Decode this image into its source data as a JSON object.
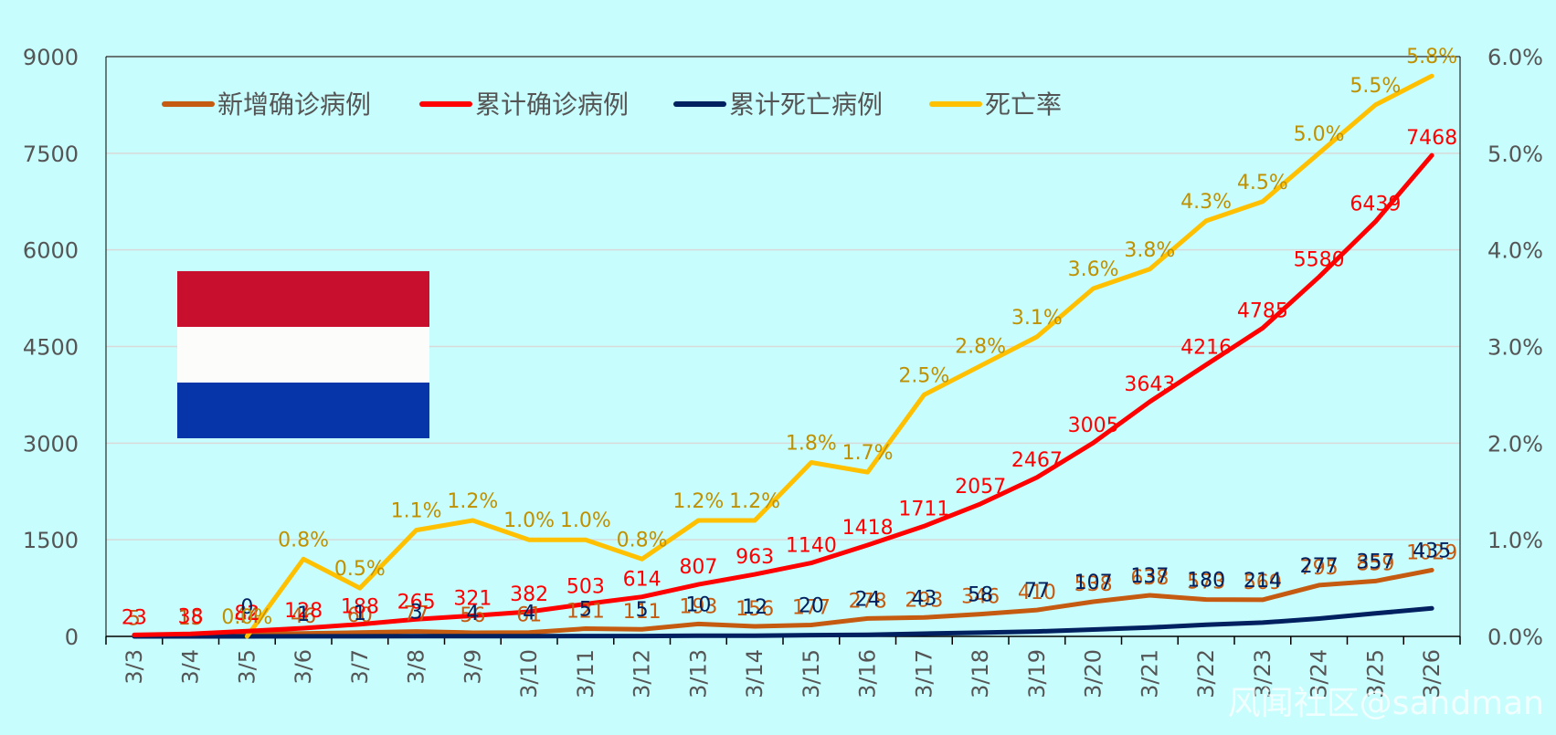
{
  "chart_data": {
    "type": "line",
    "categories": [
      "3/3",
      "3/4",
      "3/5",
      "3/6",
      "3/7",
      "3/8",
      "3/9",
      "3/10",
      "3/11",
      "3/12",
      "3/13",
      "3/14",
      "3/15",
      "3/16",
      "3/17",
      "3/18",
      "3/19",
      "3/20",
      "3/21",
      "3/22",
      "3/23",
      "3/24",
      "3/25",
      "3/26"
    ],
    "left_axis": {
      "ylim": [
        0,
        9000
      ],
      "ticks": [
        "0",
        "1500",
        "3000",
        "4500",
        "6000",
        "7500",
        "9000"
      ]
    },
    "right_axis": {
      "ylim": [
        0,
        6.0
      ],
      "ticks": [
        "0.0%",
        "1.0%",
        "2.0%",
        "3.0%",
        "4.0%",
        "5.0%",
        "6.0%"
      ]
    },
    "series": [
      {
        "name": "新增确诊病例",
        "axis": "left",
        "color": "#c55a11",
        "values": [
          5,
          15,
          44,
          46,
          60,
          77,
          56,
          61,
          121,
          111,
          193,
          156,
          177,
          278,
          293,
          346,
          410,
          538,
          638,
          573,
          569,
          795,
          859,
          1029
        ],
        "labels": [
          "5",
          "15",
          "44",
          "46",
          "60",
          "77",
          "56",
          "61",
          "121",
          "111",
          "193",
          "156",
          "177",
          "278",
          "293",
          "346",
          "410",
          "538",
          "638",
          "573",
          "569",
          "795",
          "859",
          "1029"
        ]
      },
      {
        "name": "累计确诊病例",
        "axis": "left",
        "color": "#ff0000",
        "values": [
          23,
          38,
          82,
          128,
          188,
          265,
          321,
          382,
          503,
          614,
          807,
          963,
          1140,
          1418,
          1711,
          2057,
          2467,
          3005,
          3643,
          4216,
          4785,
          5580,
          6439,
          7468
        ],
        "labels": [
          "23",
          "38",
          "82",
          "128",
          "188",
          "265",
          "321",
          "382",
          "503",
          "614",
          "807",
          "963",
          "1140",
          "1418",
          "1711",
          "2057",
          "2467",
          "3005",
          "3643",
          "4216",
          "4785",
          "5580",
          "6439",
          "7468"
        ]
      },
      {
        "name": "累计死亡病例",
        "axis": "left",
        "color": "#002060",
        "values": [
          0,
          0,
          0,
          1,
          1,
          3,
          4,
          4,
          5,
          5,
          10,
          12,
          20,
          24,
          43,
          58,
          77,
          107,
          137,
          180,
          214,
          277,
          357,
          435
        ],
        "labels": [
          "",
          "",
          "0",
          "1",
          "1",
          "3",
          "4",
          "4",
          "5",
          "5",
          "10",
          "12",
          "20",
          "24",
          "43",
          "58",
          "77",
          "107",
          "137",
          "180",
          "214",
          "277",
          "357",
          "435"
        ]
      },
      {
        "name": "死亡率",
        "axis": "right",
        "color": "#ffc000",
        "values": [
          null,
          null,
          0.0,
          0.8,
          0.5,
          1.1,
          1.2,
          1.0,
          1.0,
          0.8,
          1.2,
          1.2,
          1.8,
          1.7,
          2.5,
          2.8,
          3.1,
          3.6,
          3.8,
          4.3,
          4.5,
          5.0,
          5.5,
          5.8
        ],
        "labels": [
          "",
          "",
          "0.0%",
          "0.8%",
          "0.5%",
          "1.1%",
          "1.2%",
          "1.0%",
          "1.0%",
          "0.8%",
          "1.2%",
          "1.2%",
          "1.8%",
          "1.7%",
          "2.5%",
          "2.8%",
          "3.1%",
          "3.6%",
          "3.8%",
          "4.3%",
          "4.5%",
          "5.0%",
          "5.5%",
          "5.8%"
        ]
      }
    ],
    "legend_position": "top-left",
    "grid": true
  },
  "colors": {
    "background": "#c8fdfd",
    "grid": "#d9d9d9",
    "label_new": "#c55a11",
    "label_total": "#ff0000",
    "label_deaths": "#002060",
    "label_rate": "#bf9000",
    "flag_red": "#c8102e",
    "flag_white": "#fcfcfa",
    "flag_blue": "#0535a8"
  },
  "watermark": "风闻社区@sandman"
}
